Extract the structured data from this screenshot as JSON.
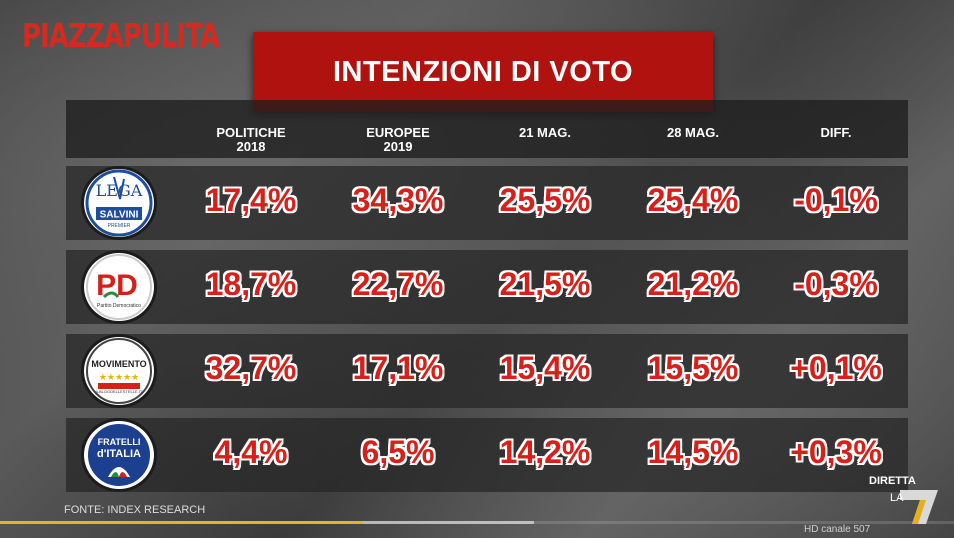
{
  "brand": "PIAZZAPULITA",
  "title": "INTENZIONI DI VOTO",
  "columns": [
    {
      "line1": "POLITICHE",
      "line2": "2018"
    },
    {
      "line1": "EUROPEE",
      "line2": "2019"
    },
    {
      "line1": "21 MAG.",
      "line2": ""
    },
    {
      "line1": "28 MAG.",
      "line2": ""
    },
    {
      "line1": "DIFF.",
      "line2": ""
    }
  ],
  "rows": [
    {
      "logo": {
        "top": "LEGA",
        "bottom": "SALVINI",
        "sub": "PREMIER",
        "icon": "lega-logo"
      },
      "values": [
        "17,4%",
        "34,3%",
        "25,5%",
        "25,4%",
        "-0,1%"
      ]
    },
    {
      "logo": {
        "top": "PD",
        "bottom": "Partito Democratico",
        "icon": "pd-logo"
      },
      "values": [
        "18,7%",
        "22,7%",
        "21,5%",
        "21,2%",
        "-0,3%"
      ]
    },
    {
      "logo": {
        "top": "MOVIMENTO",
        "bottom": "ILBLOGDELLESTELLE.IT",
        "icon": "m5s-logo"
      },
      "values": [
        "32,7%",
        "17,1%",
        "15,4%",
        "15,5%",
        "+0,1%"
      ]
    },
    {
      "logo": {
        "top": "FRATELLI",
        "bottom": "d'ITALIA",
        "icon": "fdi-logo"
      },
      "values": [
        "4,4%",
        "6,5%",
        "14,2%",
        "14,5%",
        "+0,3%"
      ]
    }
  ],
  "source": "FONTE: INDEX RESEARCH",
  "broadcaster": {
    "live": "DIRETTA",
    "channel_prefix": "LA",
    "channel_digit": "7",
    "hd": "HD canale 507"
  },
  "progress": 0.38,
  "colors": {
    "accent": "#b0130f",
    "value": "#d8201a",
    "brand": "#d42a1f"
  }
}
